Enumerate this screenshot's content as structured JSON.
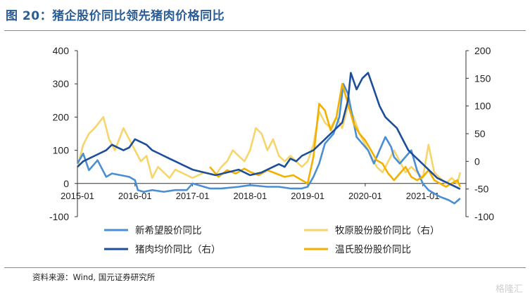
{
  "title": "图 20：猪企股价同比领先猪肉价格同比",
  "source": "资料来源：Wind, 国元证券研究所",
  "watermark": "格隆汇",
  "chart_data": {
    "type": "line",
    "x_tick_labels": [
      "2015-01",
      "2016-01",
      "2017-01",
      "2018-01",
      "2019-01",
      "2020-01",
      "2021-01"
    ],
    "y_left": {
      "ticks": [
        400,
        300,
        200,
        100,
        0,
        -100
      ],
      "range": [
        -100,
        400
      ]
    },
    "y_right": {
      "ticks": [
        200,
        150,
        100,
        50,
        0,
        -50,
        -100
      ],
      "range": [
        -100,
        200
      ]
    },
    "legend": [
      {
        "label": "新希望股价同比",
        "color": "#4a8fd4",
        "axis": "left"
      },
      {
        "label": "牧原股份股价同比（右）",
        "color": "#f7d56b",
        "axis": "right"
      },
      {
        "label": "猪肉均价同比（右）",
        "color": "#1d4e9a",
        "axis": "right"
      },
      {
        "label": "温氏股份股价同比",
        "color": "#f2b000",
        "axis": "left"
      }
    ],
    "series": [
      {
        "name": "新希望股价同比",
        "axis": "left",
        "color": "#4a8fd4",
        "x": [
          2015.0,
          2015.1,
          2015.2,
          2015.35,
          2015.5,
          2015.6,
          2015.75,
          2015.9,
          2016.0,
          2016.05,
          2016.15,
          2016.3,
          2016.5,
          2016.7,
          2016.9,
          2017.0,
          2017.3,
          2017.5,
          2017.8,
          2018.0,
          2018.3,
          2018.5,
          2018.7,
          2018.9,
          2019.0,
          2019.1,
          2019.2,
          2019.3,
          2019.45,
          2019.55,
          2019.62,
          2019.7,
          2019.78,
          2019.85,
          2019.95,
          2020.05,
          2020.15,
          2020.25,
          2020.35,
          2020.45,
          2020.5,
          2020.6,
          2020.7,
          2020.8,
          2020.9,
          2021.0,
          2021.1,
          2021.2,
          2021.3,
          2021.45,
          2021.55,
          2021.65
        ],
        "y": [
          60,
          90,
          40,
          70,
          20,
          30,
          25,
          20,
          10,
          -20,
          -25,
          -20,
          -25,
          -20,
          -20,
          0,
          -15,
          -15,
          -10,
          -5,
          -10,
          -10,
          -15,
          -15,
          -10,
          20,
          60,
          120,
          150,
          200,
          300,
          270,
          200,
          140,
          120,
          100,
          60,
          100,
          140,
          110,
          80,
          60,
          80,
          100,
          40,
          0,
          -20,
          -30,
          -40,
          -50,
          -60,
          -45
        ]
      },
      {
        "name": "牧原股份股价同比（右）",
        "axis": "right",
        "color": "#f7d56b",
        "x": [
          2015.0,
          2015.1,
          2015.2,
          2015.3,
          2015.45,
          2015.55,
          2015.65,
          2015.8,
          2015.9,
          2016.0,
          2016.1,
          2016.2,
          2016.3,
          2016.4,
          2016.5,
          2016.6,
          2016.7,
          2016.8,
          2016.9,
          2017.0,
          2017.2,
          2017.4,
          2017.5,
          2017.6,
          2017.7,
          2017.8,
          2017.9,
          2018.0,
          2018.1,
          2018.2,
          2018.3,
          2018.4,
          2018.5,
          2018.6,
          2018.7,
          2018.8,
          2018.9,
          2019.0,
          2019.1,
          2019.2,
          2019.3,
          2019.4,
          2019.5,
          2019.6,
          2019.7,
          2019.8,
          2019.9,
          2020.0,
          2020.1,
          2020.2,
          2020.3,
          2020.4,
          2020.5,
          2020.6,
          2020.7,
          2020.8,
          2020.9,
          2021.0,
          2021.1,
          2021.2,
          2021.3,
          2021.4,
          2021.5,
          2021.6,
          2021.65
        ],
        "y": [
          -10,
          30,
          50,
          60,
          80,
          40,
          20,
          60,
          40,
          20,
          0,
          10,
          -30,
          -10,
          -20,
          -30,
          -15,
          -20,
          -25,
          -30,
          -20,
          -25,
          -10,
          0,
          20,
          10,
          0,
          20,
          60,
          50,
          20,
          40,
          10,
          0,
          10,
          0,
          -10,
          0,
          30,
          90,
          70,
          60,
          80,
          60,
          100,
          80,
          50,
          30,
          10,
          -10,
          -20,
          0,
          20,
          0,
          -20,
          -10,
          -20,
          -30,
          30,
          -20,
          -30,
          -40,
          -30,
          -40,
          -20
        ]
      },
      {
        "name": "猪肉均价同比（右）",
        "axis": "right",
        "color": "#1d4e9a",
        "x": [
          2015.0,
          2015.1,
          2015.2,
          2015.3,
          2015.4,
          2015.5,
          2015.6,
          2015.7,
          2015.8,
          2015.9,
          2016.0,
          2016.1,
          2016.2,
          2016.3,
          2016.4,
          2016.5,
          2016.6,
          2016.7,
          2016.8,
          2016.9,
          2017.0,
          2017.2,
          2017.4,
          2017.6,
          2017.8,
          2018.0,
          2018.2,
          2018.4,
          2018.5,
          2018.6,
          2018.7,
          2018.8,
          2018.9,
          2019.0,
          2019.1,
          2019.2,
          2019.3,
          2019.4,
          2019.5,
          2019.6,
          2019.7,
          2019.75,
          2019.85,
          2019.95,
          2020.05,
          2020.15,
          2020.25,
          2020.35,
          2020.45,
          2020.55,
          2020.65,
          2020.75,
          2020.85,
          2020.95,
          2021.05,
          2021.15,
          2021.25,
          2021.35,
          2021.45,
          2021.55,
          2021.65
        ],
        "y": [
          -10,
          0,
          5,
          10,
          15,
          20,
          30,
          25,
          20,
          25,
          40,
          35,
          30,
          20,
          15,
          10,
          5,
          0,
          -5,
          -10,
          -15,
          -20,
          -25,
          -20,
          -15,
          -25,
          -20,
          -10,
          -5,
          -10,
          5,
          0,
          10,
          15,
          20,
          30,
          40,
          50,
          60,
          70,
          110,
          160,
          130,
          150,
          160,
          130,
          100,
          80,
          70,
          60,
          40,
          20,
          10,
          0,
          -10,
          -20,
          -30,
          -35,
          -40,
          -45,
          -50
        ]
      },
      {
        "name": "温氏股份股价同比",
        "axis": "left",
        "color": "#f2b000",
        "x": [
          2017.3,
          2017.45,
          2017.6,
          2017.75,
          2017.9,
          2018.0,
          2018.15,
          2018.3,
          2018.45,
          2018.6,
          2018.75,
          2018.9,
          2019.0,
          2019.1,
          2019.2,
          2019.3,
          2019.4,
          2019.5,
          2019.6,
          2019.7,
          2019.8,
          2019.9,
          2020.0,
          2020.1,
          2020.2,
          2020.3,
          2020.4,
          2020.5,
          2020.6,
          2020.7,
          2020.8,
          2020.9,
          2021.0,
          2021.1,
          2021.2,
          2021.3,
          2021.4,
          2021.5,
          2021.6,
          2021.65
        ],
        "y": [
          50,
          20,
          40,
          30,
          45,
          35,
          25,
          40,
          30,
          20,
          25,
          10,
          0,
          80,
          240,
          220,
          160,
          200,
          300,
          240,
          180,
          150,
          130,
          100,
          70,
          60,
          30,
          10,
          30,
          50,
          20,
          10,
          20,
          40,
          10,
          0,
          -10,
          0,
          10,
          -10
        ]
      }
    ]
  }
}
